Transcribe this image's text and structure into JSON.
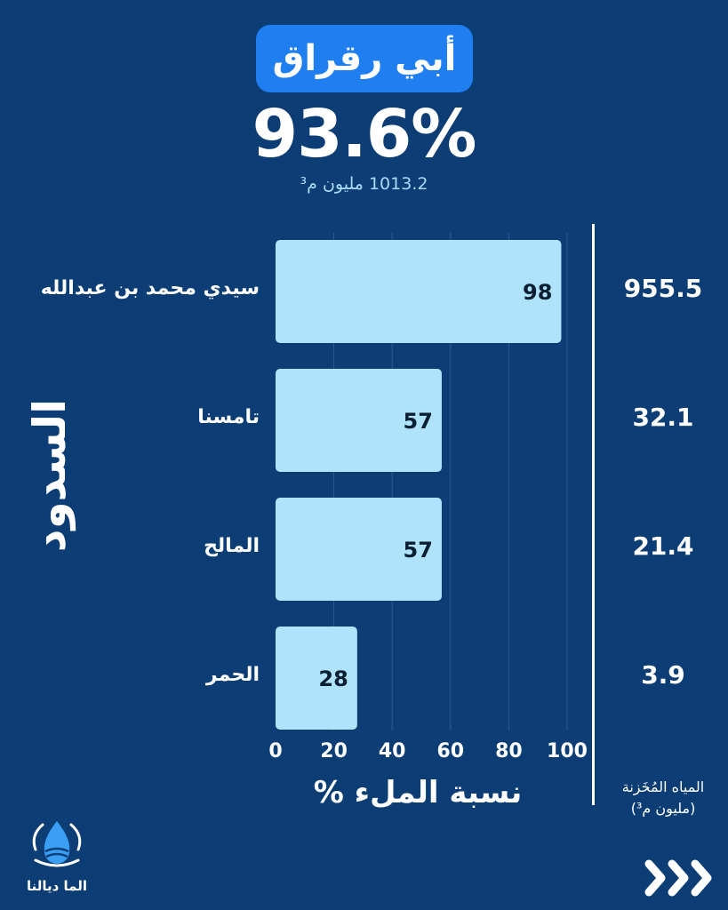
{
  "header": {
    "title": "أبي رقراق",
    "percent": "93.6%",
    "volume": "1013.2 مليون م³"
  },
  "side_label": "السدود",
  "x_axis_title": "نسبة الملء %",
  "stored_title_line1": "المياه المُخَزنة",
  "stored_title_line2": "(مليون م³)",
  "logo_text": "الما ديالنا",
  "colors": {
    "background": "#0d3d75",
    "pill": "#1f7ff0",
    "bar": "#aee3fb",
    "volume_text": "#a9dcfb"
  },
  "chart_data": {
    "type": "bar",
    "orientation": "horizontal",
    "categories": [
      "سيدي محمد بن عبدالله",
      "تامسنا",
      "المالح",
      "الحمر"
    ],
    "values": [
      98,
      57,
      57,
      28
    ],
    "stored": [
      "955.5",
      "32.1",
      "21.4",
      "3.9"
    ],
    "xlabel": "نسبة الملء %",
    "xlim": [
      0,
      100
    ],
    "xticks": [
      0,
      20,
      40,
      60,
      80,
      100
    ],
    "grid": true
  }
}
